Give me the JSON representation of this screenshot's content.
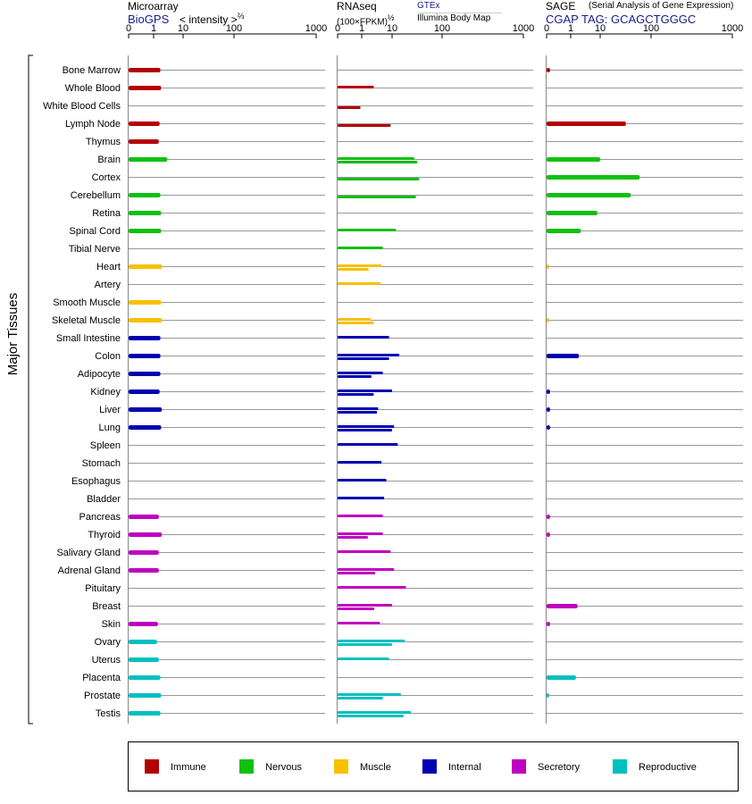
{
  "header": {
    "microarray_title": "Microarray",
    "microarray_source": "BioGPS",
    "microarray_unit": "< intensity >",
    "microarray_exp": "⅔",
    "rnaseq_title": "RNAseq",
    "rnaseq_unit": "(100×FPKM)",
    "rnaseq_exp": "½",
    "rnaseq_source1": "GTEx",
    "rnaseq_source2": "Illumina Body Map",
    "sage_title": "SAGE",
    "sage_subtitle": "(Serial Analysis of Gene Expression)",
    "sage_tag": "CGAP  TAG: GCAGCTGGGC"
  },
  "colors": {
    "Immune": "#b40000",
    "Nervous": "#10c010",
    "Muscle": "#f8c000",
    "Internal": "#0000b0",
    "Secretory": "#c000c0",
    "Reproductive": "#00c0c0"
  },
  "chart_data": {
    "type": "bar",
    "ylabel": "Major Tissues",
    "axis_ticks": [
      "0",
      "1",
      "10",
      "100",
      "1000"
    ],
    "xscale": "log (sqrt-compressed near 0)",
    "legend": [
      "Immune",
      "Nervous",
      "Muscle",
      "Internal",
      "Secretory",
      "Reproductive"
    ],
    "legend_position": "bottom",
    "categories": [
      "Bone Marrow",
      "Whole Blood",
      "White Blood Cells",
      "Lymph Node",
      "Thymus",
      "Brain",
      "Cortex",
      "Cerebellum",
      "Retina",
      "Spinal Cord",
      "Tibial Nerve",
      "Heart",
      "Artery",
      "Smooth Muscle",
      "Skeletal Muscle",
      "Small Intestine",
      "Colon",
      "Adipocyte",
      "Kidney",
      "Liver",
      "Lung",
      "Spleen",
      "Stomach",
      "Esophagus",
      "Bladder",
      "Pancreas",
      "Thyroid",
      "Salivary Gland",
      "Adrenal Gland",
      "Pituitary",
      "Breast",
      "Skin",
      "Ovary",
      "Uterus",
      "Placenta",
      "Prostate",
      "Testis"
    ],
    "groups": [
      "Immune",
      "Immune",
      "Immune",
      "Immune",
      "Immune",
      "Nervous",
      "Nervous",
      "Nervous",
      "Nervous",
      "Nervous",
      "Nervous",
      "Muscle",
      "Muscle",
      "Muscle",
      "Muscle",
      "Internal",
      "Internal",
      "Internal",
      "Internal",
      "Internal",
      "Internal",
      "Internal",
      "Internal",
      "Internal",
      "Internal",
      "Secretory",
      "Secretory",
      "Secretory",
      "Secretory",
      "Secretory",
      "Secretory",
      "Secretory",
      "Reproductive",
      "Reproductive",
      "Reproductive",
      "Reproductive",
      "Reproductive"
    ],
    "microarray": [
      1.7,
      1.8,
      null,
      1.6,
      1.5,
      2.9,
      null,
      1.7,
      1.8,
      1.8,
      null,
      1.9,
      null,
      1.8,
      1.9,
      1.7,
      1.7,
      1.7,
      1.6,
      1.9,
      1.8,
      null,
      null,
      null,
      null,
      1.5,
      1.9,
      1.5,
      1.5,
      null,
      null,
      1.4,
      1.3,
      1.5,
      1.7,
      1.8,
      1.7
    ],
    "rnaseq_gtex": [
      null,
      2.5,
      null,
      null,
      null,
      28,
      null,
      null,
      null,
      12,
      5,
      4.5,
      4.2,
      null,
      2.0,
      8,
      14,
      5,
      10,
      3.5,
      11,
      13,
      4.5,
      6.5,
      5.5,
      5,
      5,
      9,
      11,
      19,
      10,
      4,
      18,
      8,
      null,
      15,
      24
    ],
    "rnaseq_ibm": [
      null,
      null,
      0.9,
      9,
      null,
      32,
      35,
      30,
      null,
      null,
      null,
      1.7,
      null,
      null,
      2.5,
      null,
      8,
      2.1,
      2.5,
      3.2,
      10,
      null,
      null,
      null,
      null,
      null,
      1.6,
      null,
      2.8,
      null,
      2.6,
      null,
      10,
      null,
      null,
      5,
      17
    ],
    "sage": [
      0.02,
      null,
      null,
      32,
      null,
      10,
      60,
      40,
      8,
      2.2,
      null,
      0.01,
      null,
      null,
      0.01,
      null,
      1.9,
      null,
      0.02,
      0.02,
      0.02,
      null,
      null,
      null,
      null,
      0.02,
      0.02,
      null,
      null,
      null,
      1.7,
      0.02,
      null,
      null,
      1.5,
      0.01,
      null
    ]
  }
}
